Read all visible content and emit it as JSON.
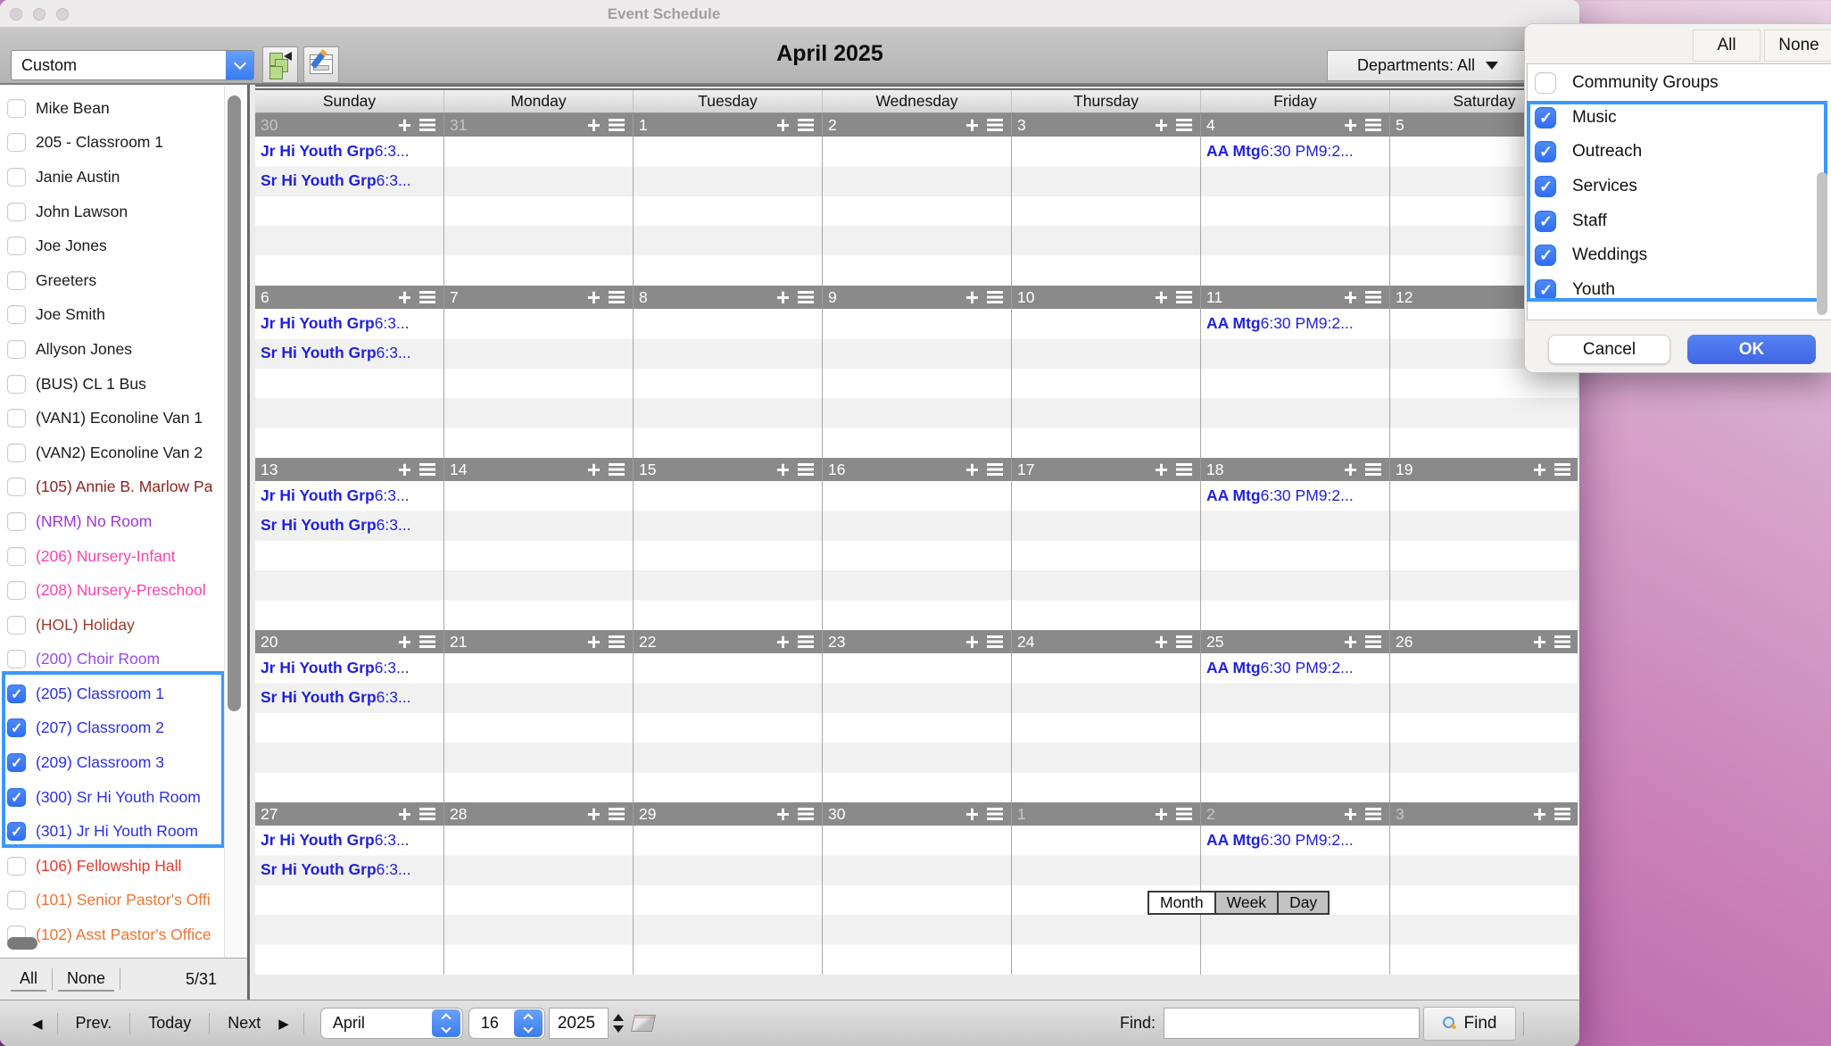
{
  "window": {
    "title": "Event Schedule"
  },
  "toolbar": {
    "view_preset": "Custom",
    "month_title": "April 2025",
    "departments_label": "Departments: All"
  },
  "sidebar": {
    "items": [
      {
        "label": "Mike Bean",
        "color": "#1a1a1a",
        "checked": false,
        "selected": false
      },
      {
        "label": "205 - Classroom 1",
        "color": "#1a1a1a",
        "checked": false,
        "selected": false
      },
      {
        "label": "Janie Austin",
        "color": "#1a1a1a",
        "checked": false,
        "selected": false
      },
      {
        "label": "John Lawson",
        "color": "#1a1a1a",
        "checked": false,
        "selected": false
      },
      {
        "label": "Joe Jones",
        "color": "#1a1a1a",
        "checked": false,
        "selected": false
      },
      {
        "label": "Greeters",
        "color": "#1a1a1a",
        "checked": false,
        "selected": false
      },
      {
        "label": "Joe Smith",
        "color": "#1a1a1a",
        "checked": false,
        "selected": false
      },
      {
        "label": "Allyson Jones",
        "color": "#1a1a1a",
        "checked": false,
        "selected": false
      },
      {
        "label": "(BUS) CL 1 Bus",
        "color": "#1a1a1a",
        "checked": false,
        "selected": false
      },
      {
        "label": "(VAN1) Econoline Van 1",
        "color": "#1a1a1a",
        "checked": false,
        "selected": false
      },
      {
        "label": "(VAN2) Econoline Van 2",
        "color": "#1a1a1a",
        "checked": false,
        "selected": false
      },
      {
        "label": "(105) Annie B. Marlow Pa",
        "color": "#8d2420",
        "checked": false,
        "selected": false
      },
      {
        "label": "(NRM) No Room",
        "color": "#9d35d3",
        "checked": false,
        "selected": false
      },
      {
        "label": "(206) Nursery-Infant",
        "color": "#f743b1",
        "checked": false,
        "selected": false
      },
      {
        "label": "(208) Nursery-Preschool",
        "color": "#f743b1",
        "checked": false,
        "selected": false
      },
      {
        "label": "(HOL) Holiday",
        "color": "#9d3a2e",
        "checked": false,
        "selected": false
      },
      {
        "label": "(200) Choir Room",
        "color": "#9b49e0",
        "checked": false,
        "selected": false
      },
      {
        "label": "(205) Classroom 1",
        "color": "#2a2fe4",
        "checked": true,
        "selected": true
      },
      {
        "label": "(207) Classroom 2",
        "color": "#2a2fe4",
        "checked": true,
        "selected": true
      },
      {
        "label": "(209) Classroom 3",
        "color": "#2a2fe4",
        "checked": true,
        "selected": true
      },
      {
        "label": "(300) Sr Hi Youth Room",
        "color": "#2a2fe4",
        "checked": true,
        "selected": true
      },
      {
        "label": "(301) Jr Hi Youth Room",
        "color": "#2a2fe4",
        "checked": true,
        "selected": true
      },
      {
        "label": "(106) Fellowship Hall",
        "color": "#e4392d",
        "checked": false,
        "selected": false
      },
      {
        "label": "(101) Senior Pastor's Offi",
        "color": "#ee7433",
        "checked": false,
        "selected": false
      },
      {
        "label": "(102) Asst Pastor's Office",
        "color": "#ee7433",
        "checked": false,
        "selected": false
      }
    ],
    "footer": {
      "all": "All",
      "none": "None",
      "count": "5/31"
    }
  },
  "calendar": {
    "day_headers": [
      "Sunday",
      "Monday",
      "Tuesday",
      "Wednesday",
      "Thursday",
      "Friday",
      "Saturday"
    ],
    "weeks": [
      {
        "days": [
          {
            "date": "30",
            "muted": true
          },
          {
            "date": "31",
            "muted": true
          },
          {
            "date": "1",
            "muted": false
          },
          {
            "date": "2",
            "muted": false
          },
          {
            "date": "3",
            "muted": false
          },
          {
            "date": "4",
            "muted": false
          },
          {
            "date": "5",
            "muted": false
          }
        ]
      },
      {
        "days": [
          {
            "date": "6",
            "muted": false
          },
          {
            "date": "7",
            "muted": false
          },
          {
            "date": "8",
            "muted": false
          },
          {
            "date": "9",
            "muted": false
          },
          {
            "date": "10",
            "muted": false
          },
          {
            "date": "11",
            "muted": false
          },
          {
            "date": "12",
            "muted": false
          }
        ]
      },
      {
        "days": [
          {
            "date": "13",
            "muted": false
          },
          {
            "date": "14",
            "muted": false
          },
          {
            "date": "15",
            "muted": false
          },
          {
            "date": "16",
            "muted": false
          },
          {
            "date": "17",
            "muted": false
          },
          {
            "date": "18",
            "muted": false
          },
          {
            "date": "19",
            "muted": false
          }
        ]
      },
      {
        "days": [
          {
            "date": "20",
            "muted": false
          },
          {
            "date": "21",
            "muted": false
          },
          {
            "date": "22",
            "muted": false
          },
          {
            "date": "23",
            "muted": false
          },
          {
            "date": "24",
            "muted": false
          },
          {
            "date": "25",
            "muted": false
          },
          {
            "date": "26",
            "muted": false
          }
        ]
      },
      {
        "days": [
          {
            "date": "27",
            "muted": false
          },
          {
            "date": "28",
            "muted": false
          },
          {
            "date": "29",
            "muted": false
          },
          {
            "date": "30",
            "muted": false
          },
          {
            "date": "1",
            "muted": true
          },
          {
            "date": "2",
            "muted": true
          },
          {
            "date": "3",
            "muted": true
          }
        ]
      }
    ],
    "events": [
      {
        "week": 0,
        "col": 0,
        "slot": 0,
        "name": "Jr Hi Youth Grp",
        "time": "6:3..."
      },
      {
        "week": 0,
        "col": 0,
        "slot": 1,
        "name": "Sr Hi Youth Grp",
        "time": "6:3..."
      },
      {
        "week": 0,
        "col": 5,
        "slot": 0,
        "name": "AA Mtg",
        "time": "6:30 PM9:2..."
      },
      {
        "week": 1,
        "col": 0,
        "slot": 0,
        "name": "Jr Hi Youth Grp",
        "time": "6:3..."
      },
      {
        "week": 1,
        "col": 0,
        "slot": 1,
        "name": "Sr Hi Youth Grp",
        "time": "6:3..."
      },
      {
        "week": 1,
        "col": 5,
        "slot": 0,
        "name": "AA Mtg",
        "time": "6:30 PM9:2..."
      },
      {
        "week": 2,
        "col": 0,
        "slot": 0,
        "name": "Jr Hi Youth Grp",
        "time": "6:3..."
      },
      {
        "week": 2,
        "col": 0,
        "slot": 1,
        "name": "Sr Hi Youth Grp",
        "time": "6:3..."
      },
      {
        "week": 2,
        "col": 5,
        "slot": 0,
        "name": "AA Mtg",
        "time": "6:30 PM9:2..."
      },
      {
        "week": 3,
        "col": 0,
        "slot": 0,
        "name": "Jr Hi Youth Grp",
        "time": "6:3..."
      },
      {
        "week": 3,
        "col": 0,
        "slot": 1,
        "name": "Sr Hi Youth Grp",
        "time": "6:3..."
      },
      {
        "week": 3,
        "col": 5,
        "slot": 0,
        "name": "AA Mtg",
        "time": "6:30 PM9:2..."
      },
      {
        "week": 4,
        "col": 0,
        "slot": 0,
        "name": "Jr Hi Youth Grp",
        "time": "6:3..."
      },
      {
        "week": 4,
        "col": 0,
        "slot": 1,
        "name": "Sr Hi Youth Grp",
        "time": "6:3..."
      },
      {
        "week": 4,
        "col": 5,
        "slot": 0,
        "name": "AA Mtg",
        "time": "6:30 PM9:2..."
      }
    ],
    "event_color": "#1f1fe0"
  },
  "view_switcher": {
    "options": [
      "Month",
      "Week",
      "Day"
    ],
    "selected": "Month"
  },
  "bottom_bar": {
    "prev_arrow": "◀",
    "prev": "Prev.",
    "today": "Today",
    "next": "Next",
    "next_arrow": "▶",
    "month_select": "April",
    "day_select": "16",
    "year_value": "2025",
    "find_label": "Find:",
    "find_value": "",
    "find_button": "Find"
  },
  "popup": {
    "all": "All",
    "none": "None",
    "items": [
      {
        "label": "Community Groups",
        "checked": false,
        "selected": false
      },
      {
        "label": "Music",
        "checked": true,
        "selected": true
      },
      {
        "label": "Outreach",
        "checked": true,
        "selected": true
      },
      {
        "label": "Services",
        "checked": true,
        "selected": true
      },
      {
        "label": "Staff",
        "checked": true,
        "selected": true
      },
      {
        "label": "Weddings",
        "checked": true,
        "selected": true
      },
      {
        "label": "Youth",
        "checked": true,
        "selected": true
      }
    ],
    "cancel": "Cancel",
    "ok": "OK"
  },
  "icons": {
    "plus": "+"
  },
  "colors": {
    "selection_outline": "#3b99fc",
    "checkbox_blue": "#2f6ef2",
    "ok_blue": "#4a70e9",
    "week_bar": "#8a8a8a"
  }
}
